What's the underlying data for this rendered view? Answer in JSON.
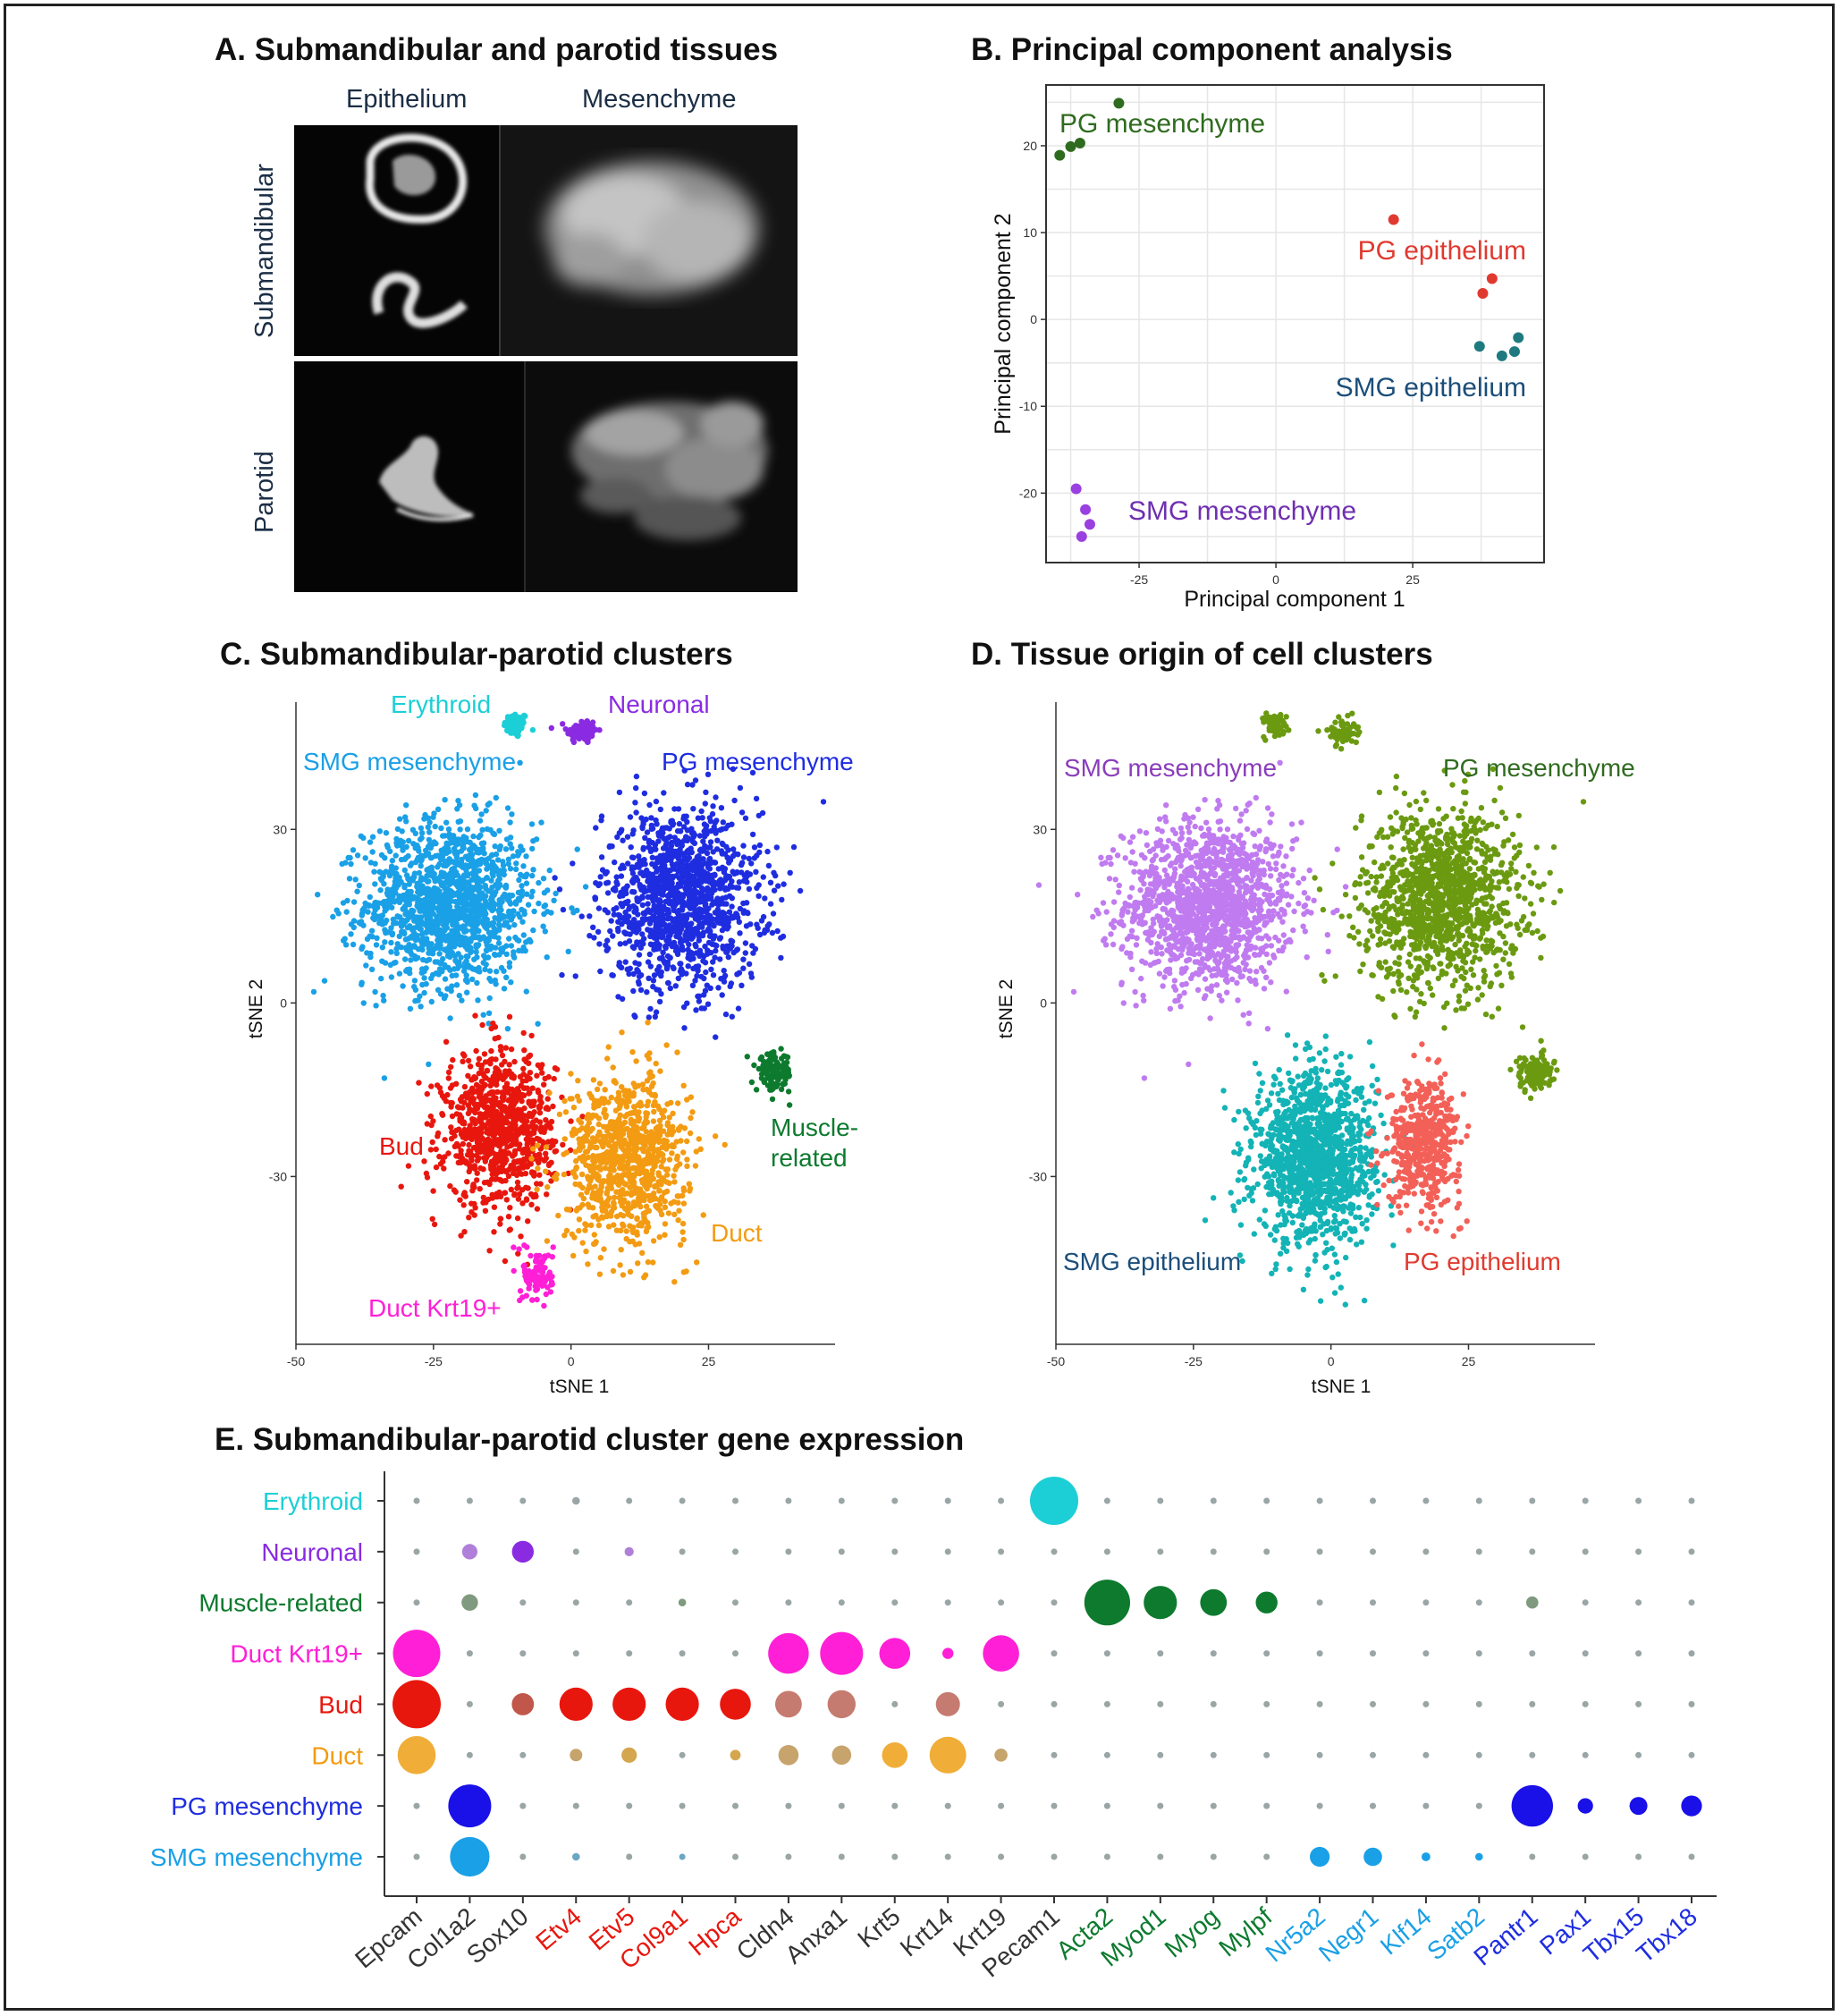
{
  "panels": {
    "A": {
      "title": "A. Submandibular and parotid tissues",
      "col_labels": [
        "Epithelium",
        "Mesenchyme"
      ],
      "row_labels": [
        "Submandibular",
        "Parotid"
      ]
    },
    "B": {
      "title": "B. Principal component analysis"
    },
    "C": {
      "title": "C. Submandibular-parotid clusters"
    },
    "D": {
      "title": "D. Tissue origin of cell clusters"
    },
    "E": {
      "title": "E. Submandibular-parotid cluster gene expression"
    }
  },
  "colors": {
    "erythroid": "#1ccfd6",
    "neuronal": "#8a2be2",
    "muscle": "#0d7a2e",
    "duct_krt19": "#ff1fd6",
    "bud": "#e8170e",
    "duct": "#f39b12",
    "pg_mesenchyme": "#1f2de0",
    "smg_mesenchyme": "#1aa0e6",
    "d_smg_mes": "#c07bf0",
    "d_pg_mes": "#6b9a11",
    "d_smg_epi": "#13b3b6",
    "d_pg_epi": "#f26058",
    "pca_pg_mes": "#2f6b1f",
    "pca_pg_epi": "#e03a30",
    "pca_smg_epi": "#1f7a80",
    "pca_smg_mes": "#9a40e0",
    "grey_dot": "#9aa5a5"
  },
  "chart_data": [
    {
      "panel": "B",
      "type": "scatter",
      "title": "B. Principal component analysis",
      "xlabel": "Principal component 1",
      "ylabel": "Principal component 2",
      "xlim": [
        -42,
        49
      ],
      "ylim": [
        -28,
        27
      ],
      "xticks": [
        -25,
        0,
        25
      ],
      "yticks": [
        -20,
        -10,
        0,
        10,
        20
      ],
      "xtick_labels": [
        "-25",
        "0",
        "25"
      ],
      "ytick_labels": [
        "-20",
        "-10",
        "0",
        "10",
        "20"
      ],
      "grid": true,
      "series": [
        {
          "name": "PG mesenchyme",
          "color": "#2f6b1f",
          "points": [
            [
              -39.5,
              18.9
            ],
            [
              -37.5,
              19.9
            ],
            [
              -35.8,
              20.3
            ],
            [
              -28.7,
              24.9
            ]
          ]
        },
        {
          "name": "PG epithelium",
          "color": "#e03a30",
          "points": [
            [
              21.5,
              11.5
            ],
            [
              39.5,
              4.7
            ],
            [
              37.8,
              3.0
            ]
          ]
        },
        {
          "name": "SMG epithelium",
          "color": "#1f7a80",
          "points": [
            [
              37.2,
              -3.1
            ],
            [
              41.3,
              -4.2
            ],
            [
              43.6,
              -3.7
            ],
            [
              44.3,
              -2.1
            ]
          ]
        },
        {
          "name": "SMG mesenchyme",
          "color": "#9a40e0",
          "points": [
            [
              -36.5,
              -19.5
            ],
            [
              -34.8,
              -21.9
            ],
            [
              -34.0,
              -23.6
            ],
            [
              -35.5,
              -25.0
            ]
          ]
        }
      ]
    },
    {
      "panel": "C",
      "type": "scatter",
      "title": "C. Submandibular-parotid clusters",
      "xlabel": "tSNE 1",
      "ylabel": "tSNE 2",
      "xlim": [
        -50,
        48
      ],
      "ylim": [
        -59,
        52
      ],
      "xticks": [
        -50,
        -25,
        0,
        25
      ],
      "yticks": [
        -30,
        0,
        30
      ],
      "xtick_labels": [
        "-50",
        "-25",
        "0",
        "25"
      ],
      "ytick_labels": [
        "-30",
        "0",
        "30"
      ],
      "clusters": [
        {
          "name": "Erythroid",
          "color": "#1ccfd6",
          "cx": -10,
          "cy": 48,
          "sx": 2,
          "sy": 2,
          "n": 70
        },
        {
          "name": "Neuronal",
          "color": "#8a2be2",
          "cx": 2,
          "cy": 47,
          "sx": 2.5,
          "sy": 2,
          "n": 90
        },
        {
          "name": "SMG mesenchyme",
          "color": "#1aa0e6",
          "cx": -22,
          "cy": 17,
          "sx": 14,
          "sy": 13,
          "n": 1400
        },
        {
          "name": "PG mesenchyme",
          "color": "#1f2de0",
          "cx": 20,
          "cy": 18,
          "sx": 13,
          "sy": 14,
          "n": 1300
        },
        {
          "name": "Muscle-related",
          "color": "#0d7a2e",
          "cx": 37,
          "cy": -12,
          "sx": 3,
          "sy": 3,
          "n": 120
        },
        {
          "name": "Bud",
          "color": "#e8170e",
          "cx": -13,
          "cy": -22,
          "sx": 9,
          "sy": 12,
          "n": 900
        },
        {
          "name": "Duct",
          "color": "#f39b12",
          "cx": 10,
          "cy": -27,
          "sx": 10,
          "sy": 13,
          "n": 900
        },
        {
          "name": "Duct Krt19+",
          "color": "#ff1fd6",
          "cx": -6,
          "cy": -47,
          "sx": 2.5,
          "sy": 4,
          "n": 110
        }
      ],
      "labels": [
        {
          "text": "Erythroid",
          "color": "#1ccfd6"
        },
        {
          "text": "Neuronal",
          "color": "#8a2be2"
        },
        {
          "text": "SMG mesenchyme",
          "color": "#1aa0e6"
        },
        {
          "text": "PG mesenchyme",
          "color": "#1f2de0"
        },
        {
          "text": "Muscle-",
          "color": "#0d7a2e"
        },
        {
          "text": "related",
          "color": "#0d7a2e"
        },
        {
          "text": "Bud",
          "color": "#e8170e"
        },
        {
          "text": "Duct",
          "color": "#f39b12"
        },
        {
          "text": "Duct Krt19+",
          "color": "#ff1fd6"
        }
      ]
    },
    {
      "panel": "D",
      "type": "scatter",
      "title": "D. Tissue origin of cell clusters",
      "xlabel": "tSNE 1",
      "ylabel": "tSNE 2",
      "xlim": [
        -50,
        48
      ],
      "ylim": [
        -59,
        52
      ],
      "xticks": [
        -50,
        -25,
        0,
        25
      ],
      "yticks": [
        -30,
        0,
        30
      ],
      "xtick_labels": [
        "-50",
        "-25",
        "0",
        "25"
      ],
      "ytick_labels": [
        "-30",
        "0",
        "30"
      ],
      "clusters": [
        {
          "name": "SMG mesenchyme",
          "color": "#c07bf0",
          "cx": -22,
          "cy": 17,
          "sx": 14,
          "sy": 13,
          "n": 1400
        },
        {
          "name": "PG mesenchyme",
          "color": "#6b9a11",
          "cx": 20,
          "cy": 18,
          "sx": 13,
          "sy": 14,
          "n": 1300
        },
        {
          "name": "SMG epithelium",
          "color": "#13b3b6",
          "cx": -3,
          "cy": -27,
          "sx": 10,
          "sy": 13,
          "n": 1300
        },
        {
          "name": "PG epithelium",
          "color": "#f26058",
          "cx": 17,
          "cy": -24,
          "sx": 6,
          "sy": 10,
          "n": 500
        },
        {
          "name": "PG mesenchyme",
          "color": "#6b9a11",
          "cx": 37,
          "cy": -12,
          "sx": 3,
          "sy": 3,
          "n": 120
        },
        {
          "name": "PG mesenchyme",
          "color": "#6b9a11",
          "cx": -10,
          "cy": 48,
          "sx": 2,
          "sy": 2,
          "n": 60
        },
        {
          "name": "PG mesenchyme",
          "color": "#6b9a11",
          "cx": 2,
          "cy": 47,
          "sx": 2.5,
          "sy": 2,
          "n": 60
        }
      ],
      "labels": [
        {
          "text": "SMG mesenchyme",
          "color": "#8a3dbb"
        },
        {
          "text": "PG mesenchyme",
          "color": "#2f6b1f"
        },
        {
          "text": "SMG epithelium",
          "color": "#1b4e7a"
        },
        {
          "text": "PG epithelium",
          "color": "#e03a30"
        }
      ]
    },
    {
      "panel": "E",
      "type": "dot",
      "title": "E. Submandibular-parotid cluster gene expression",
      "rows": [
        {
          "name": "Erythroid",
          "color": "#1ccfd6"
        },
        {
          "name": "Neuronal",
          "color": "#8a2be2"
        },
        {
          "name": "Muscle-related",
          "color": "#0d7a2e"
        },
        {
          "name": "Duct Krt19+",
          "color": "#ff1fd6"
        },
        {
          "name": "Bud",
          "color": "#e8170e"
        },
        {
          "name": "Duct",
          "color": "#f39b12"
        },
        {
          "name": "PG mesenchyme",
          "color": "#1f2de0"
        },
        {
          "name": "SMG mesenchyme",
          "color": "#1aa0e6"
        }
      ],
      "genes": [
        {
          "name": "Epcam",
          "color": "#333333"
        },
        {
          "name": "Col1a2",
          "color": "#333333"
        },
        {
          "name": "Sox10",
          "color": "#333333"
        },
        {
          "name": "Etv4",
          "color": "#e8170e"
        },
        {
          "name": "Etv5",
          "color": "#e8170e"
        },
        {
          "name": "Col9a1",
          "color": "#e8170e"
        },
        {
          "name": "Hpca",
          "color": "#e8170e"
        },
        {
          "name": "Cldn4",
          "color": "#333333"
        },
        {
          "name": "Anxa1",
          "color": "#333333"
        },
        {
          "name": "Krt5",
          "color": "#333333"
        },
        {
          "name": "Krt14",
          "color": "#333333"
        },
        {
          "name": "Krt19",
          "color": "#333333"
        },
        {
          "name": "Pecam1",
          "color": "#333333"
        },
        {
          "name": "Acta2",
          "color": "#0d7a2e"
        },
        {
          "name": "Myod1",
          "color": "#0d7a2e"
        },
        {
          "name": "Myog",
          "color": "#0d7a2e"
        },
        {
          "name": "Mylpf",
          "color": "#0d7a2e"
        },
        {
          "name": "Nr5a2",
          "color": "#1aa0e6"
        },
        {
          "name": "Negr1",
          "color": "#1aa0e6"
        },
        {
          "name": "Klf14",
          "color": "#1aa0e6"
        },
        {
          "name": "Satb2",
          "color": "#1aa0e6"
        },
        {
          "name": "Pantr1",
          "color": "#1f2de0"
        },
        {
          "name": "Pax1",
          "color": "#1f2de0"
        },
        {
          "name": "Tbx15",
          "color": "#1f2de0"
        },
        {
          "name": "Tbx18",
          "color": "#1f2de0"
        }
      ],
      "dot_size_relative": [
        [
          0.08,
          0.12,
          0.08,
          0.16,
          0.12,
          0.08,
          0.08,
          0.08,
          0.13,
          0.08,
          0.08,
          0.08,
          1.0,
          0.08,
          0.08,
          0.08,
          0.08,
          0.12,
          0.08,
          0.08,
          0.08,
          0.12,
          0.08,
          0.08,
          0.08
        ],
        [
          0.08,
          0.32,
          0.45,
          0.08,
          0.19,
          0.08,
          0.08,
          0.08,
          0.08,
          0.08,
          0.08,
          0.08,
          0.08,
          0.08,
          0.08,
          0.08,
          0.08,
          0.08,
          0.08,
          0.08,
          0.08,
          0.08,
          0.08,
          0.08,
          0.08
        ],
        [
          0.08,
          0.34,
          0.08,
          0.12,
          0.12,
          0.16,
          0.08,
          0.08,
          0.08,
          0.08,
          0.08,
          0.08,
          0.08,
          0.95,
          0.69,
          0.55,
          0.45,
          0.08,
          0.08,
          0.08,
          0.08,
          0.25,
          0.08,
          0.08,
          0.08
        ],
        [
          0.98,
          0.08,
          0.08,
          0.12,
          0.12,
          0.08,
          0.08,
          0.84,
          0.89,
          0.64,
          0.23,
          0.75,
          0.08,
          0.08,
          0.08,
          0.08,
          0.08,
          0.08,
          0.08,
          0.08,
          0.08,
          0.08,
          0.08,
          0.08,
          0.08
        ],
        [
          1.0,
          0.08,
          0.46,
          0.69,
          0.69,
          0.69,
          0.64,
          0.55,
          0.58,
          0.08,
          0.5,
          0.1,
          0.08,
          0.08,
          0.08,
          0.08,
          0.08,
          0.08,
          0.08,
          0.08,
          0.08,
          0.08,
          0.08,
          0.08,
          0.08
        ],
        [
          0.79,
          0.08,
          0.08,
          0.26,
          0.32,
          0.08,
          0.22,
          0.42,
          0.4,
          0.53,
          0.76,
          0.27,
          0.08,
          0.08,
          0.08,
          0.08,
          0.08,
          0.08,
          0.08,
          0.08,
          0.08,
          0.08,
          0.08,
          0.08,
          0.08
        ],
        [
          0.08,
          0.89,
          0.08,
          0.08,
          0.08,
          0.08,
          0.08,
          0.08,
          0.08,
          0.08,
          0.08,
          0.08,
          0.08,
          0.08,
          0.08,
          0.08,
          0.08,
          0.08,
          0.08,
          0.08,
          0.08,
          0.86,
          0.32,
          0.37,
          0.43
        ],
        [
          0.08,
          0.82,
          0.08,
          0.16,
          0.12,
          0.12,
          0.08,
          0.08,
          0.08,
          0.08,
          0.08,
          0.08,
          0.08,
          0.08,
          0.08,
          0.08,
          0.08,
          0.41,
          0.38,
          0.18,
          0.16,
          0.08,
          0.08,
          0.08,
          0.08
        ]
      ],
      "dot_color": [
        [
          "g",
          "g",
          "g",
          "g",
          "g",
          "g",
          "g",
          "g",
          "g",
          "g",
          "g",
          "g",
          "#1ccfd6",
          "g",
          "g",
          "g",
          "g",
          "g",
          "g",
          "g",
          "g",
          "g",
          "g",
          "g",
          "g"
        ],
        [
          "g",
          "#b07fd9",
          "#8a2be2",
          "g",
          "#b07fd9",
          "g",
          "g",
          "g",
          "g",
          "g",
          "g",
          "g",
          "g",
          "g",
          "g",
          "g",
          "g",
          "g",
          "g",
          "g",
          "g",
          "g",
          "g",
          "g",
          "g"
        ],
        [
          "g",
          "#7f9a7f",
          "g",
          "g",
          "g",
          "#7f9a7f",
          "g",
          "g",
          "g",
          "g",
          "g",
          "g",
          "g",
          "#0d7a2e",
          "#0d7a2e",
          "#0d7a2e",
          "#0d7a2e",
          "g",
          "g",
          "g",
          "g",
          "#7f9a7f",
          "g",
          "g",
          "g"
        ],
        [
          "#ff1fd6",
          "g",
          "g",
          "g",
          "g",
          "g",
          "g",
          "#ff1fd6",
          "#ff1fd6",
          "#ff1fd6",
          "#ff1fd6",
          "#ff1fd6",
          "g",
          "g",
          "g",
          "g",
          "g",
          "g",
          "g",
          "g",
          "g",
          "g",
          "g",
          "g",
          "g"
        ],
        [
          "#e8170e",
          "g",
          "#c0574a",
          "#e8170e",
          "#e8170e",
          "#e8170e",
          "#e8170e",
          "#c67b70",
          "#c67b70",
          "g",
          "#c67b70",
          "g",
          "g",
          "g",
          "g",
          "g",
          "g",
          "g",
          "g",
          "g",
          "g",
          "g",
          "g",
          "g",
          "g"
        ],
        [
          "#f0ad38",
          "g",
          "g",
          "#c6a46c",
          "#d4a64e",
          "g",
          "#d4a64e",
          "#c6a46c",
          "#c6a46c",
          "#f0ad38",
          "#f0ad38",
          "#c6a46c",
          "g",
          "g",
          "g",
          "g",
          "g",
          "g",
          "g",
          "g",
          "g",
          "g",
          "g",
          "g",
          "g"
        ],
        [
          "g",
          "#1a10e8",
          "g",
          "g",
          "g",
          "g",
          "g",
          "g",
          "g",
          "g",
          "g",
          "g",
          "g",
          "g",
          "g",
          "g",
          "g",
          "g",
          "g",
          "g",
          "g",
          "#1a10e8",
          "#1a10e8",
          "#1a10e8",
          "#1a10e8"
        ],
        [
          "g",
          "#1aa0e6",
          "g",
          "#6ba6c4",
          "g",
          "#6ba6c4",
          "g",
          "g",
          "g",
          "g",
          "g",
          "g",
          "g",
          "g",
          "g",
          "g",
          "g",
          "#1aa0e6",
          "#1aa0e6",
          "#1aa0e6",
          "#1aa0e6",
          "g",
          "g",
          "g",
          "g"
        ]
      ]
    }
  ]
}
